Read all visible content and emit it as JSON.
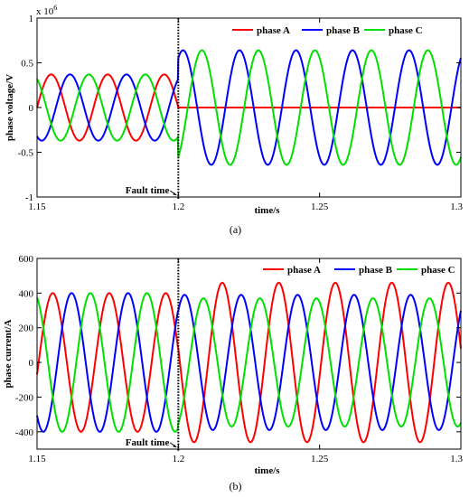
{
  "chart_data": [
    {
      "type": "line",
      "caption": "(a)",
      "xlabel": "time/s",
      "ylabel": "phase voltage/V",
      "exponent_label": "x 10",
      "exponent_power": "6",
      "xlim": [
        1.15,
        1.3
      ],
      "ylim": [
        -1,
        1
      ],
      "y_scale": 1000000,
      "x_ticks": [
        "1.15",
        "1.2",
        "1.25",
        "1.3"
      ],
      "y_ticks": [
        "-1",
        "-0.5",
        "0",
        "0.5",
        "1"
      ],
      "frequency_hz": 50,
      "annotation": {
        "text": "Fault time",
        "x": 1.2
      },
      "legend_position": "top-right",
      "series": [
        {
          "name": "phase A",
          "color": "#ff0000",
          "amplitude_pre": 0.37,
          "amplitude_post": 0.0,
          "phase_deg": 180
        },
        {
          "name": "phase B",
          "color": "#0000ff",
          "amplitude_pre": 0.37,
          "amplitude_post": 0.64,
          "phase_deg": 60
        },
        {
          "name": "phase C",
          "color": "#00e000",
          "amplitude_pre": 0.37,
          "amplitude_post": 0.64,
          "phase_deg": -60
        }
      ]
    },
    {
      "type": "line",
      "caption": "(b)",
      "xlabel": "time/s",
      "ylabel": "phase current/A",
      "xlim": [
        1.15,
        1.3
      ],
      "ylim": [
        -500,
        600
      ],
      "x_ticks": [
        "1.15",
        "1.2",
        "1.25",
        "1.3"
      ],
      "y_ticks": [
        "-400",
        "-200",
        "0",
        "200",
        "400",
        "600"
      ],
      "frequency_hz": 50,
      "annotation": {
        "text": "Fault time",
        "x": 1.2
      },
      "legend_position": "top-right",
      "series": [
        {
          "name": "phase A",
          "color": "#ff0000",
          "amplitude_pre": 400,
          "amplitude_post": 460,
          "phase_deg": 170
        },
        {
          "name": "phase B",
          "color": "#0000ff",
          "amplitude_pre": 400,
          "amplitude_post": 390,
          "phase_deg": 50
        },
        {
          "name": "phase C",
          "color": "#00e000",
          "amplitude_pre": 400,
          "amplitude_post": 370,
          "phase_deg": -70
        }
      ]
    }
  ]
}
